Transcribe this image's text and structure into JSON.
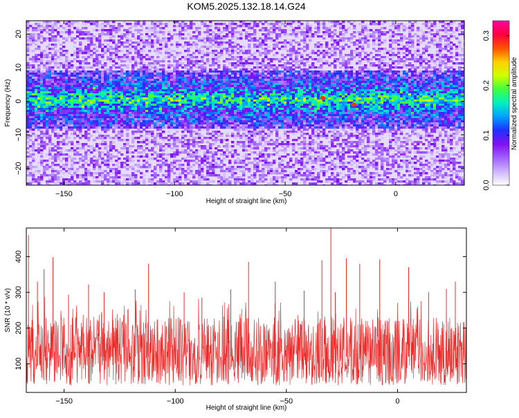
{
  "title": "KOM5.2025.132.18.14.G24",
  "chart_data": [
    {
      "type": "heatmap",
      "xlabel": "Height of straight line (km)",
      "ylabel": "Frequency (Hz)",
      "xlim": [
        -167,
        31
      ],
      "ylim": [
        -25,
        24
      ],
      "xticks": [
        -150,
        -100,
        -50,
        0
      ],
      "yticks": [
        -20,
        -10,
        0,
        10,
        20
      ],
      "colorbar": {
        "label": "Normalized spectral amplitude",
        "range": [
          0.0,
          0.33
        ],
        "ticks": [
          0.0,
          0.1,
          0.2,
          0.3
        ],
        "colormap": [
          "#ffffff",
          "#cfb4ff",
          "#a060ff",
          "#8010f0",
          "#2030ff",
          "#00a0ff",
          "#00f0c0",
          "#40ff40",
          "#d0ff00",
          "#ffd000",
          "#ff5000",
          "#ff0040",
          "#ff00a0"
        ]
      },
      "features": {
        "band_center_hz": 0.5,
        "band_halfwidth_hz": 4,
        "peak_points": [
          {
            "x": -33,
            "y": 1,
            "value": 0.33
          },
          {
            "x": -19,
            "y": -1,
            "value": 0.33
          }
        ]
      },
      "grid": false
    },
    {
      "type": "line",
      "xlabel": "Height of straight line (km)",
      "ylabel": "SNR (10 * v/v)",
      "xlim": [
        -167,
        31
      ],
      "ylim": [
        20,
        480
      ],
      "xticks": [
        -150,
        -100,
        -50,
        0
      ],
      "yticks": [
        100,
        200,
        300,
        400
      ],
      "color": "#ee2a2a",
      "typical_range": [
        40,
        230
      ],
      "spikes": [
        {
          "x": -166,
          "y": 460
        },
        {
          "x": -162,
          "y": 330
        },
        {
          "x": -159,
          "y": 365
        },
        {
          "x": -155,
          "y": 398
        },
        {
          "x": -148,
          "y": 293
        },
        {
          "x": -139,
          "y": 322
        },
        {
          "x": -132,
          "y": 300
        },
        {
          "x": -118,
          "y": 308
        },
        {
          "x": -112,
          "y": 380
        },
        {
          "x": -96,
          "y": 300
        },
        {
          "x": -88,
          "y": 285
        },
        {
          "x": -75,
          "y": 308
        },
        {
          "x": -67,
          "y": 385
        },
        {
          "x": -55,
          "y": 330
        },
        {
          "x": -42,
          "y": 305
        },
        {
          "x": -34,
          "y": 390
        },
        {
          "x": -30,
          "y": 480
        },
        {
          "x": -28,
          "y": 300
        },
        {
          "x": -23,
          "y": 395
        },
        {
          "x": -17,
          "y": 380
        },
        {
          "x": -8,
          "y": 392
        },
        {
          "x": 5,
          "y": 370
        },
        {
          "x": 14,
          "y": 300
        },
        {
          "x": 22,
          "y": 310
        },
        {
          "x": 26,
          "y": 330
        }
      ],
      "grid": false
    }
  ]
}
